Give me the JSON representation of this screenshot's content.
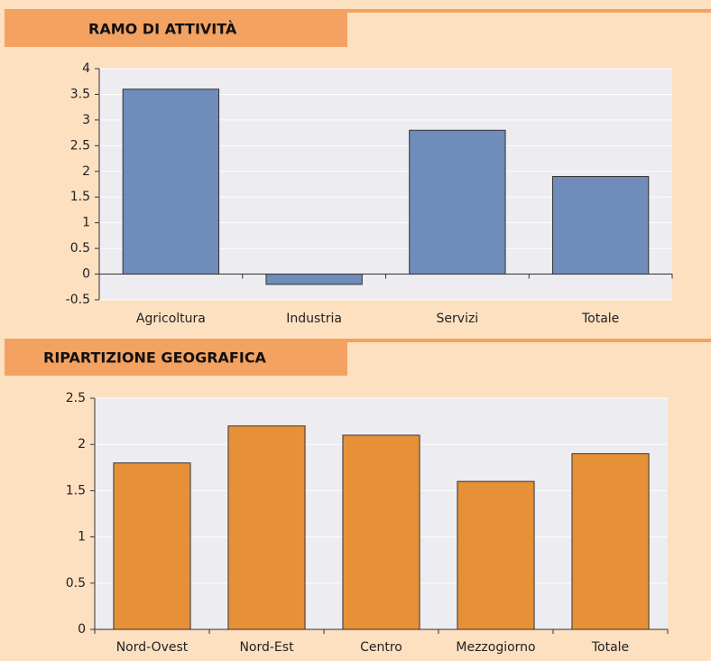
{
  "chart_data": [
    {
      "type": "bar",
      "title": "RAMO DI ATTIVITÀ",
      "categories": [
        "Agricoltura",
        "Industria",
        "Servizi",
        "Totale"
      ],
      "values": [
        3.6,
        -0.2,
        2.8,
        1.9
      ],
      "color": "#6f8cbb",
      "ylim": [
        -0.5,
        4
      ],
      "yticks": [
        -0.5,
        0,
        0.5,
        1,
        1.5,
        2,
        2.5,
        3,
        3.5,
        4
      ],
      "grid": true
    },
    {
      "type": "bar",
      "title": "RIPARTIZIONE GEOGRAFICA",
      "categories": [
        "Nord-Ovest",
        "Nord-Est",
        "Centro",
        "Mezzogiorno",
        "Totale"
      ],
      "values": [
        1.8,
        2.2,
        2.1,
        1.6,
        1.9
      ],
      "color": "#e69138",
      "ylim": [
        0,
        2.5
      ],
      "yticks": [
        0,
        0.5,
        1,
        1.5,
        2,
        2.5
      ],
      "grid": true
    }
  ]
}
